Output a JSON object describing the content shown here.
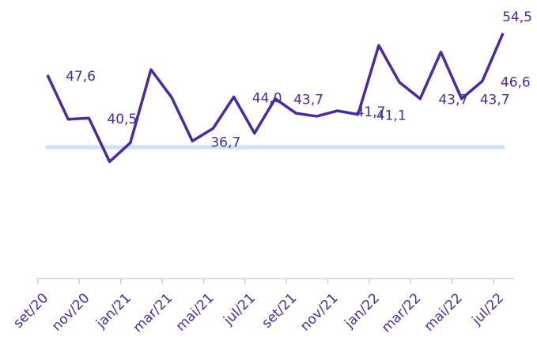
{
  "chart_data": {
    "type": "line",
    "categories": [
      "set/20",
      null,
      "nov/20",
      null,
      "jan/21",
      null,
      "mar/21",
      null,
      "mai/21",
      null,
      "jul/21",
      null,
      "set/21",
      null,
      "nov/21",
      null,
      "jan/22",
      null,
      "mar/22",
      null,
      "mai/22",
      null,
      "jul/22"
    ],
    "series": [
      {
        "color": "#4b2a9c",
        "values": [
          47.6,
          40.3,
          40.5,
          33.3,
          36.4,
          48.5,
          43.9,
          36.7,
          38.8,
          44.0,
          38.0,
          43.7,
          41.3,
          40.8,
          41.7,
          41.1,
          52.5,
          46.4,
          43.7,
          51.4,
          43.7,
          46.6,
          54.5
        ],
        "value_labels": [
          "47,6",
          null,
          "40,5",
          null,
          null,
          null,
          null,
          "36,7",
          null,
          "44,0",
          null,
          "43,7",
          null,
          null,
          "41,7",
          "41,1",
          null,
          null,
          "43,7",
          null,
          "43,7",
          "46,6",
          "54,5"
        ]
      }
    ],
    "reference_line": {
      "value": 35.7,
      "color": "#cfe2f8"
    },
    "ylim": [
      14,
      60
    ]
  }
}
